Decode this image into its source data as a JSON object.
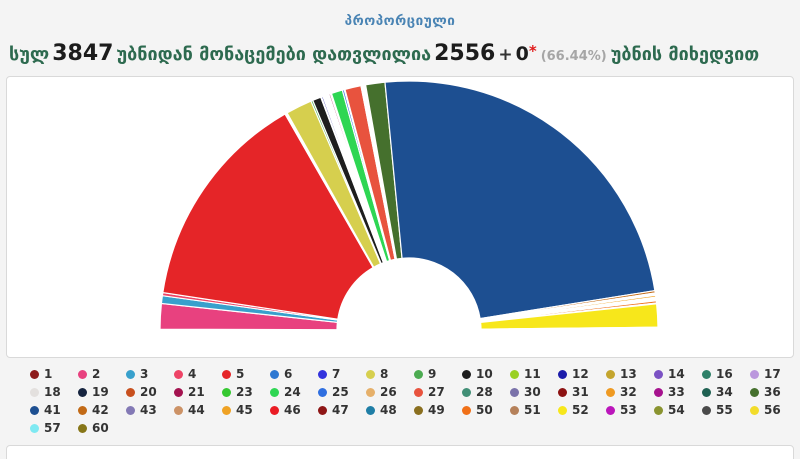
{
  "page": {
    "title": "პროპორციული",
    "subtitle": {
      "prefix": "სულ",
      "total_precincts": "3847",
      "middle": "უბნიდან მონაცემები დათვლილია",
      "counted": "2556",
      "plus": "+",
      "extra": "0",
      "asterisk": "*",
      "percent": "(66.44%)",
      "suffix": "უბნის მიხედვით"
    }
  },
  "colors": {
    "page_bg": "#f4f4f4",
    "panel_bg": "#ffffff",
    "panel_border": "#d9d9d9",
    "title": "#4a84b4",
    "subtitle_text": "#2d6a4f",
    "subtitle_number": "#1c1c1c",
    "asterisk": "#e01b1b",
    "percent_text": "#a6a6a6",
    "legend_number": "#333333",
    "slice_separator": "#ffffff"
  },
  "chart_data": {
    "type": "pie",
    "variant": "half-donut",
    "title": "პროპორციული",
    "unit": "percent of party-list votes, by party ballot number",
    "order": "ascending ballot number, drawn from left (180°) to right (0°)",
    "angle_span_deg": 180,
    "legend_position": "bottom",
    "slices": [
      {
        "number": "1",
        "color": "#8e1b1b",
        "pct": 0.1
      },
      {
        "number": "2",
        "color": "#e8417f",
        "pct": 3.3
      },
      {
        "number": "3",
        "color": "#38a0cc",
        "pct": 1.0
      },
      {
        "number": "4",
        "color": "#ee4466",
        "pct": 0.4
      },
      {
        "number": "5",
        "color": "#e52528",
        "pct": 28.6
      },
      {
        "number": "6",
        "color": "#2e78d2",
        "pct": 0.15
      },
      {
        "number": "7",
        "color": "#3333dd",
        "pct": 0.15
      },
      {
        "number": "8",
        "color": "#d6cf4e",
        "pct": 3.4
      },
      {
        "number": "9",
        "color": "#4cab51",
        "pct": 0.25
      },
      {
        "number": "10",
        "color": "#1e1e1e",
        "pct": 1.1
      },
      {
        "number": "11",
        "color": "#9ad024",
        "pct": 0.1
      },
      {
        "number": "12",
        "color": "#1c1caa",
        "pct": 0.2
      },
      {
        "number": "13",
        "color": "#c4a52e",
        "pct": 0.1
      },
      {
        "number": "14",
        "color": "#7b52c4",
        "pct": 0.15
      },
      {
        "number": "16",
        "color": "#2e8068",
        "pct": 0.1
      },
      {
        "number": "17",
        "color": "#bb97dd",
        "pct": 0.1
      },
      {
        "number": "18",
        "color": "#e3e0de",
        "pct": 0.1
      },
      {
        "number": "19",
        "color": "#16243f",
        "pct": 0.15
      },
      {
        "number": "20",
        "color": "#c8501e",
        "pct": 0.1
      },
      {
        "number": "21",
        "color": "#a3134f",
        "pct": 0.2
      },
      {
        "number": "23",
        "color": "#35c831",
        "pct": 0.15
      },
      {
        "number": "24",
        "color": "#2ed653",
        "pct": 1.45
      },
      {
        "number": "25",
        "color": "#2f6fe0",
        "pct": 0.25
      },
      {
        "number": "26",
        "color": "#e6b06a",
        "pct": 0.1
      },
      {
        "number": "27",
        "color": "#e8533e",
        "pct": 2.1
      },
      {
        "number": "28",
        "color": "#418f76",
        "pct": 0.1
      },
      {
        "number": "30",
        "color": "#7a72aa",
        "pct": 0.1
      },
      {
        "number": "31",
        "color": "#8c1212",
        "pct": 0.1
      },
      {
        "number": "32",
        "color": "#ef9a22",
        "pct": 0.1
      },
      {
        "number": "33",
        "color": "#a6128e",
        "pct": 0.1
      },
      {
        "number": "34",
        "color": "#1f6152",
        "pct": 0.1
      },
      {
        "number": "36",
        "color": "#45702d",
        "pct": 2.5
      },
      {
        "number": "41",
        "color": "#1d4f91",
        "pct": 48.0
      },
      {
        "number": "42",
        "color": "#c26a16",
        "pct": 0.3
      },
      {
        "number": "43",
        "color": "#8379b5",
        "pct": 0.15
      },
      {
        "number": "44",
        "color": "#cc9266",
        "pct": 0.15
      },
      {
        "number": "45",
        "color": "#efa224",
        "pct": 0.25
      },
      {
        "number": "46",
        "color": "#ea1c24",
        "pct": 0.15
      },
      {
        "number": "47",
        "color": "#8e1616",
        "pct": 0.1
      },
      {
        "number": "48",
        "color": "#1f7ea6",
        "pct": 0.1
      },
      {
        "number": "49",
        "color": "#8a6f1f",
        "pct": 0.1
      },
      {
        "number": "50",
        "color": "#f07018",
        "pct": 0.3
      },
      {
        "number": "51",
        "color": "#b5815a",
        "pct": 0.1
      },
      {
        "number": "52",
        "color": "#f7e71b",
        "pct": 3.0
      },
      {
        "number": "53",
        "color": "#bb16bb",
        "pct": 0.05
      },
      {
        "number": "54",
        "color": "#8a9430",
        "pct": 0.05
      },
      {
        "number": "55",
        "color": "#4a4a4a",
        "pct": 0.05
      },
      {
        "number": "56",
        "color": "#f2dc2a",
        "pct": 0.1
      },
      {
        "number": "57",
        "color": "#7fe9f2",
        "pct": 0.05
      },
      {
        "number": "60",
        "color": "#877618",
        "pct": 0.05
      }
    ]
  }
}
